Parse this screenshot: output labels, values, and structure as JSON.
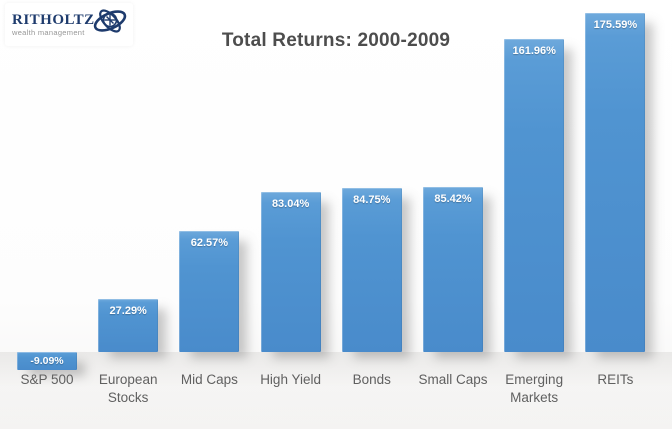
{
  "logo": {
    "brand": "RITHOLTZ",
    "tagline": "wealth management",
    "icon": "orbit-globe-icon",
    "brand_color": "#1e3b6d",
    "tagline_color": "#979797"
  },
  "chart_data": {
    "type": "bar",
    "title": "Total Returns: 2000-2009",
    "categories": [
      "S&P 500",
      "European Stocks",
      "Mid Caps",
      "High Yield",
      "Bonds",
      "Small Caps",
      "Emerging Markets",
      "REITs"
    ],
    "values": [
      -9.09,
      27.29,
      62.57,
      83.04,
      84.75,
      85.42,
      161.96,
      175.59
    ],
    "value_labels": [
      "-9.09%",
      "27.29%",
      "62.57%",
      "83.04%",
      "84.75%",
      "85.42%",
      "161.96%",
      "175.59%"
    ],
    "xlabel": "",
    "ylabel": "",
    "ylim": [
      -20,
      180
    ],
    "grid": false,
    "legend": null,
    "value_labels_position": "inside-top",
    "colors": {
      "bar": "#5094d1",
      "bar_highlight": "#6ea9dc",
      "value_label": "#ffffff",
      "category_label": "#606060",
      "title": "#4d4d4d",
      "shadow": "#b7b5b2"
    }
  }
}
